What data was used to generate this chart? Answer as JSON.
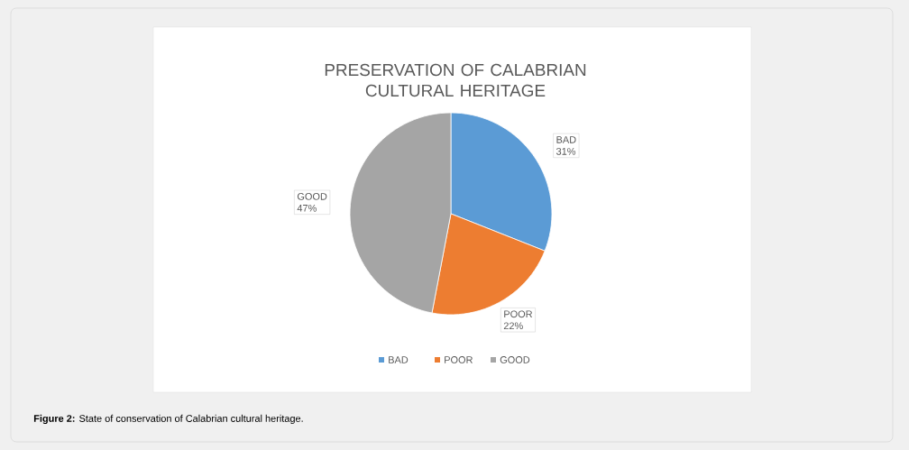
{
  "chart_data": {
    "type": "pie",
    "title": "PRESERVATION OF CALABRIAN CULTURAL HERITAGE",
    "categories": [
      "BAD",
      "POOR",
      "GOOD"
    ],
    "values": [
      31,
      22,
      47
    ],
    "value_labels": [
      "31%",
      "22%",
      "47%"
    ],
    "colors": [
      "#5b9bd5",
      "#ed7d31",
      "#a5a5a5"
    ],
    "legend": "bottom",
    "annotations": [
      "**Figure 2:** State of conservation of Calabrian cultural heritage."
    ]
  }
}
